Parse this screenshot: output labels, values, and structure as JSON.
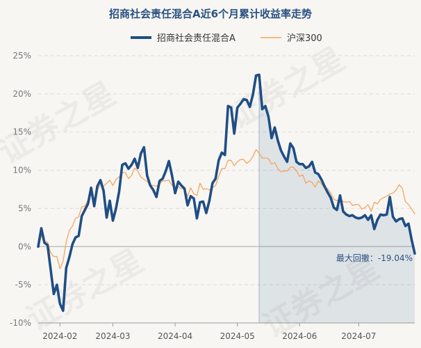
{
  "chart_data": {
    "type": "line",
    "title": "招商社会责任混合A近6个月累计收益率走势",
    "xlabel": "",
    "ylabel": "",
    "ylim": [
      -10,
      25
    ],
    "yticks": [
      25,
      20,
      15,
      10,
      5,
      0,
      -5,
      -10
    ],
    "ytick_labels": [
      "25%",
      "20%",
      "15%",
      "10%",
      "5%",
      "0%",
      "-5%",
      "-10%"
    ],
    "xticks": [
      {
        "label": "2024-02",
        "index": 7
      },
      {
        "label": "2024-03",
        "index": 24
      },
      {
        "label": "2024-04",
        "index": 44
      },
      {
        "label": "2024-05",
        "index": 64
      },
      {
        "label": "2024-06",
        "index": 84
      },
      {
        "label": "2024-07",
        "index": 103
      }
    ],
    "n_points": 122,
    "series": [
      {
        "name": "招商社会责任混合A",
        "color": "#1f4e85",
        "values": [
          0,
          2.4,
          0.5,
          0.2,
          -3.0,
          -6.2,
          -5.0,
          -7.5,
          -8.4,
          -2.8,
          -1.4,
          0.3,
          1.2,
          1.4,
          4.0,
          4.8,
          5.6,
          7.7,
          5.3,
          7.9,
          8.7,
          7.3,
          3.8,
          6.0,
          3.4,
          5.0,
          7.2,
          10.7,
          10.9,
          10.2,
          10.7,
          11.5,
          10.3,
          12.2,
          13.0,
          9.3,
          8.0,
          7.4,
          6.5,
          8.6,
          8.9,
          9.9,
          11.2,
          9.3,
          7.0,
          8.5,
          8.0,
          7.6,
          5.4,
          6.6,
          6.3,
          3.7,
          5.8,
          5.9,
          4.4,
          6.0,
          8.3,
          8.9,
          11.3,
          12.3,
          12.0,
          18.4,
          18.2,
          14.8,
          18.2,
          18.7,
          19.3,
          19.2,
          18.3,
          19.9,
          22.4,
          22.5,
          18.0,
          18.4,
          17.0,
          14.2,
          15.6,
          13.9,
          12.6,
          11.8,
          11.1,
          13.5,
          12.9,
          11.1,
          10.8,
          10.8,
          10.3,
          10.5,
          11.1,
          9.7,
          9.5,
          8.8,
          7.9,
          7.1,
          6.4,
          5.1,
          4.8,
          6.7,
          4.6,
          4.2,
          4.0,
          4.1,
          3.8,
          3.7,
          3.8,
          4.1,
          3.5,
          4.1,
          2.3,
          3.5,
          4.2,
          4.1,
          4.2,
          6.5,
          3.9,
          3.3,
          3.6,
          3.7,
          2.7,
          3.0,
          0.9,
          -0.9
        ]
      },
      {
        "name": "沪深300",
        "color": "#f4a55f",
        "values": [
          0,
          1.4,
          0.7,
          0.6,
          -0.8,
          -1.3,
          -1.3,
          -2.9,
          -1.9,
          0.6,
          2.1,
          2.7,
          3.7,
          3.9,
          5.2,
          5.3,
          6.1,
          6.8,
          6.2,
          7.4,
          8.1,
          7.9,
          8.3,
          8.7,
          8.0,
          8.8,
          9.1,
          9.7,
          9.7,
          8.9,
          9.3,
          10.3,
          9.9,
          9.1,
          8.8,
          8.5,
          8.1,
          8.0,
          7.9,
          8.2,
          8.6,
          8.6,
          8.7,
          8.0,
          7.7,
          7.8,
          7.6,
          7.5,
          6.6,
          7.7,
          6.9,
          6.7,
          8.3,
          7.5,
          7.6,
          7.4,
          7.7,
          8.0,
          9.2,
          10.2,
          10.2,
          11.3,
          11.3,
          10.6,
          11.1,
          11.4,
          11.4,
          10.9,
          11.2,
          11.8,
          12.7,
          12.2,
          11.6,
          11.6,
          11.5,
          10.8,
          11.0,
          10.2,
          9.8,
          9.9,
          9.9,
          10.4,
          10.4,
          9.9,
          9.2,
          9.4,
          8.3,
          8.6,
          8.4,
          7.8,
          8.6,
          8.2,
          7.7,
          7.6,
          7.0,
          6.2,
          6.0,
          6.3,
          5.9,
          5.8,
          5.9,
          5.4,
          5.5,
          5.5,
          4.9,
          5.1,
          5.5,
          4.6,
          5.8,
          5.6,
          6.2,
          6.4,
          6.6,
          6.9,
          7.0,
          7.4,
          8.1,
          7.6,
          5.9,
          5.5,
          4.9,
          4.3
        ]
      }
    ],
    "drawdown_region": {
      "start_index": 71,
      "end_index": 121
    },
    "drawdown_label": "最大回撤：-19.04%",
    "legend_position": "top-center",
    "grid": true
  },
  "watermark_text": "证券之星"
}
